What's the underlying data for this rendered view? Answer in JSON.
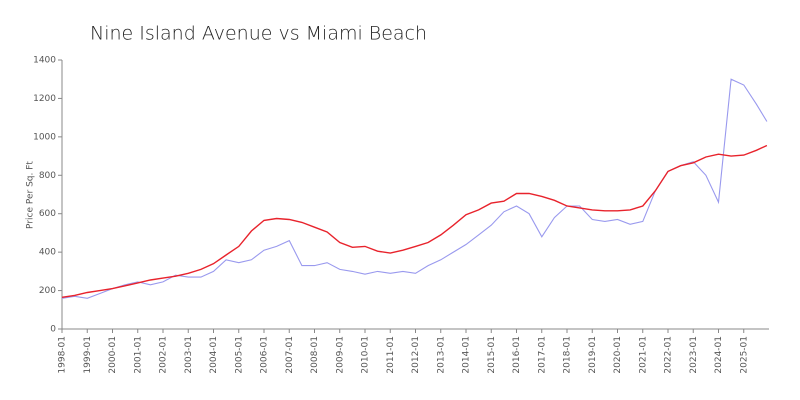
{
  "chart_data": {
    "type": "line",
    "title": "Nine Island Avenue vs Miami Beach",
    "y_label": "Price Per Sq. Ft",
    "x": [
      "1998-01",
      "1998-07",
      "1999-01",
      "1999-07",
      "2000-01",
      "2000-07",
      "2001-01",
      "2001-07",
      "2002-01",
      "2002-07",
      "2003-01",
      "2003-07",
      "2004-01",
      "2004-07",
      "2005-01",
      "2005-07",
      "2006-01",
      "2006-07",
      "2007-01",
      "2007-07",
      "2008-01",
      "2008-07",
      "2009-01",
      "2009-07",
      "2010-01",
      "2010-07",
      "2011-01",
      "2011-07",
      "2012-01",
      "2012-07",
      "2013-01",
      "2013-07",
      "2014-01",
      "2014-07",
      "2015-01",
      "2015-07",
      "2016-01",
      "2016-07",
      "2017-01",
      "2017-07",
      "2018-01",
      "2018-07",
      "2019-01",
      "2019-07",
      "2020-01",
      "2020-07",
      "2021-01",
      "2021-07",
      "2022-01",
      "2022-07",
      "2023-01",
      "2023-07",
      "2024-01",
      "2024-07",
      "2025-01",
      "2025-07",
      "2025-12"
    ],
    "series": [
      {
        "color": "#9999ee",
        "values": [
          160,
          170,
          160,
          185,
          210,
          230,
          245,
          230,
          245,
          280,
          270,
          270,
          300,
          360,
          345,
          360,
          410,
          430,
          460,
          330,
          330,
          345,
          310,
          300,
          285,
          300,
          290,
          300,
          290,
          330,
          360,
          400,
          440,
          490,
          540,
          610,
          640,
          600,
          480,
          580,
          640,
          640,
          570,
          560,
          570,
          545,
          560,
          720,
          820,
          850,
          870,
          800,
          660,
          1300,
          1270,
          1170,
          1080
        ]
      },
      {
        "color": "#e8232c",
        "values": [
          165,
          175,
          190,
          200,
          210,
          225,
          240,
          255,
          265,
          275,
          290,
          310,
          340,
          385,
          430,
          510,
          565,
          575,
          570,
          555,
          530,
          505,
          450,
          425,
          430,
          405,
          395,
          410,
          430,
          450,
          490,
          540,
          595,
          620,
          655,
          665,
          705,
          705,
          690,
          670,
          640,
          630,
          620,
          615,
          615,
          620,
          640,
          720,
          820,
          850,
          865,
          895,
          910,
          900,
          905,
          930,
          955
        ]
      }
    ],
    "xlim": [
      "1998-01",
      "2026-01"
    ],
    "xticks": [
      "1998-01",
      "1999-01",
      "2000-01",
      "2001-01",
      "2002-01",
      "2003-01",
      "2004-01",
      "2005-01",
      "2006-01",
      "2007-01",
      "2008-01",
      "2009-01",
      "2010-01",
      "2011-01",
      "2012-01",
      "2013-01",
      "2014-01",
      "2015-01",
      "2016-01",
      "2017-01",
      "2018-01",
      "2019-01",
      "2020-01",
      "2021-01",
      "2022-01",
      "2023-01",
      "2024-01",
      "2025-01"
    ],
    "ylim": [
      0,
      1400
    ],
    "yticks": [
      0,
      200,
      400,
      600,
      800,
      1000,
      1200,
      1400
    ]
  }
}
